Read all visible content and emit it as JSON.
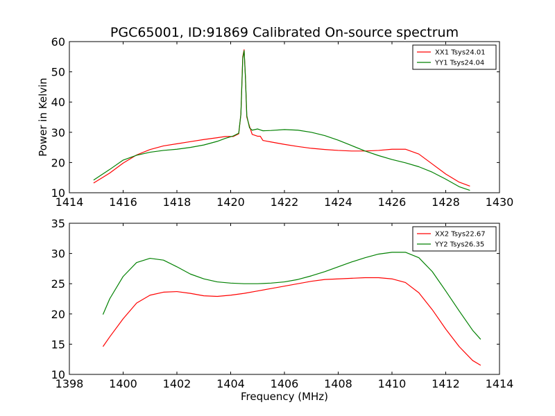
{
  "title": "PGC65001, ID:91869 Calibrated On-source spectrum",
  "colors": {
    "red": "#ff0000",
    "green": "#008000",
    "axes": "#000000",
    "background": "#ffffff"
  },
  "chart_data": [
    {
      "type": "line",
      "title": "PGC65001, ID:91869 Calibrated On-source spectrum",
      "xlabel": "",
      "ylabel": "Power in Kelvin",
      "xlim": [
        1414,
        1430
      ],
      "ylim": [
        10,
        60
      ],
      "xticks": [
        1414,
        1416,
        1418,
        1420,
        1422,
        1424,
        1426,
        1428,
        1430
      ],
      "yticks": [
        10,
        20,
        30,
        40,
        50,
        60
      ],
      "grid": false,
      "legend_position": "top-right",
      "series": [
        {
          "name": "XX1 Tsys24.01",
          "color": "#ff0000",
          "x": [
            1414.9,
            1415.5,
            1416.0,
            1416.5,
            1417.0,
            1417.5,
            1418.0,
            1418.5,
            1419.0,
            1419.5,
            1419.8,
            1420.1,
            1420.3,
            1420.38,
            1420.45,
            1420.5,
            1420.55,
            1420.6,
            1420.7,
            1420.8,
            1421.0,
            1421.1,
            1421.2,
            1421.5,
            1422.0,
            1422.5,
            1423.0,
            1423.5,
            1424.0,
            1424.5,
            1425.0,
            1425.5,
            1426.0,
            1426.5,
            1427.0,
            1427.5,
            1428.0,
            1428.5,
            1428.9
          ],
          "y": [
            13.2,
            16.5,
            19.8,
            22.5,
            24.3,
            25.5,
            26.2,
            26.9,
            27.6,
            28.2,
            28.6,
            28.6,
            29.5,
            36.0,
            55.0,
            57.3,
            48.0,
            35.0,
            32.0,
            29.3,
            28.7,
            28.7,
            27.3,
            26.8,
            26.0,
            25.3,
            24.7,
            24.3,
            24.0,
            23.8,
            23.8,
            24.0,
            24.4,
            24.4,
            22.8,
            19.5,
            16.2,
            13.5,
            12.2
          ]
        },
        {
          "name": "YY1 Tsys24.04",
          "color": "#008000",
          "x": [
            1414.9,
            1415.5,
            1416.0,
            1416.5,
            1417.0,
            1417.5,
            1418.0,
            1418.5,
            1419.0,
            1419.5,
            1419.8,
            1420.1,
            1420.3,
            1420.38,
            1420.45,
            1420.5,
            1420.55,
            1420.6,
            1420.7,
            1420.8,
            1421.0,
            1421.1,
            1421.2,
            1421.5,
            1422.0,
            1422.5,
            1423.0,
            1423.5,
            1424.0,
            1424.5,
            1425.0,
            1425.5,
            1426.0,
            1426.5,
            1427.0,
            1427.5,
            1428.0,
            1428.5,
            1428.9
          ],
          "y": [
            14.2,
            17.7,
            20.8,
            22.4,
            23.4,
            24.0,
            24.4,
            25.0,
            25.8,
            27.0,
            28.0,
            28.8,
            29.7,
            36.0,
            54.5,
            57.0,
            48.0,
            35.5,
            31.5,
            30.7,
            31.1,
            30.8,
            30.5,
            30.6,
            30.9,
            30.7,
            30.0,
            28.9,
            27.4,
            25.6,
            23.8,
            22.3,
            21.0,
            19.9,
            18.6,
            16.8,
            14.5,
            12.0,
            10.8
          ]
        }
      ]
    },
    {
      "type": "line",
      "title": "",
      "xlabel": "Frequency (MHz)",
      "ylabel": "",
      "xlim": [
        1398,
        1414
      ],
      "ylim": [
        10,
        35
      ],
      "xticks": [
        1398,
        1400,
        1402,
        1404,
        1406,
        1408,
        1410,
        1412,
        1414
      ],
      "yticks": [
        10,
        15,
        20,
        25,
        30,
        35
      ],
      "grid": false,
      "legend_position": "top-right",
      "series": [
        {
          "name": "XX2 Tsys22.67",
          "color": "#ff0000",
          "x": [
            1399.25,
            1399.5,
            1400.0,
            1400.5,
            1401.0,
            1401.5,
            1402.0,
            1402.5,
            1403.0,
            1403.5,
            1404.0,
            1404.5,
            1405.0,
            1405.5,
            1406.0,
            1406.5,
            1407.0,
            1407.5,
            1408.0,
            1408.5,
            1409.0,
            1409.5,
            1410.0,
            1410.5,
            1411.0,
            1411.5,
            1412.0,
            1412.5,
            1413.0,
            1413.3
          ],
          "y": [
            14.6,
            16.2,
            19.2,
            21.8,
            23.1,
            23.6,
            23.7,
            23.4,
            23.0,
            22.9,
            23.1,
            23.4,
            23.8,
            24.2,
            24.6,
            25.0,
            25.4,
            25.7,
            25.8,
            25.9,
            26.0,
            26.0,
            25.8,
            25.2,
            23.5,
            20.7,
            17.5,
            14.6,
            12.3,
            11.5
          ]
        },
        {
          "name": "YY2 Tsys26.35",
          "color": "#008000",
          "x": [
            1399.25,
            1399.5,
            1400.0,
            1400.5,
            1401.0,
            1401.5,
            1402.0,
            1402.5,
            1403.0,
            1403.5,
            1404.0,
            1404.5,
            1405.0,
            1405.5,
            1406.0,
            1406.5,
            1407.0,
            1407.5,
            1408.0,
            1408.5,
            1409.0,
            1409.5,
            1410.0,
            1410.5,
            1411.0,
            1411.5,
            1412.0,
            1412.5,
            1413.0,
            1413.3
          ],
          "y": [
            19.9,
            22.5,
            26.2,
            28.5,
            29.2,
            28.9,
            27.8,
            26.6,
            25.8,
            25.3,
            25.1,
            25.0,
            25.0,
            25.1,
            25.3,
            25.7,
            26.3,
            27.0,
            27.8,
            28.6,
            29.3,
            29.9,
            30.2,
            30.2,
            29.3,
            27.0,
            23.8,
            20.5,
            17.3,
            15.8
          ]
        }
      ]
    }
  ]
}
